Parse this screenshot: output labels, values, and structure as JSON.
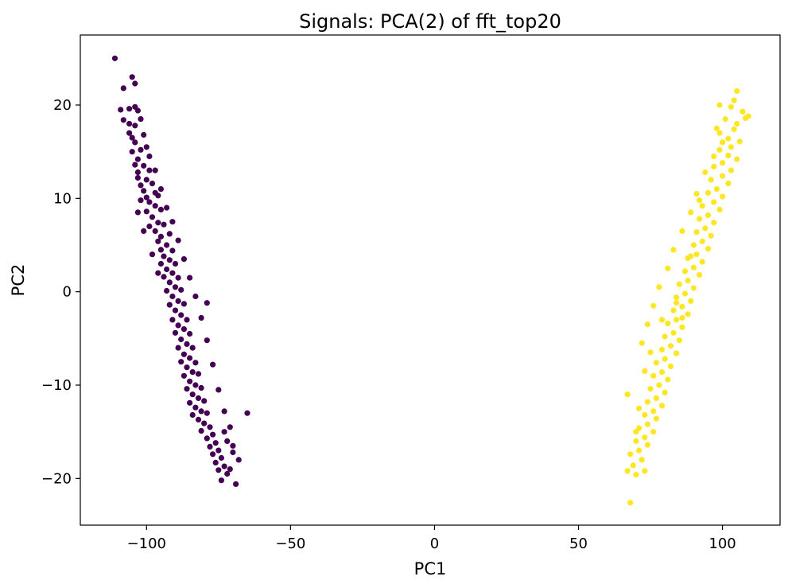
{
  "chart_data": {
    "type": "scatter",
    "title": "Signals: PCA(2) of fft_top20",
    "xlabel": "PC1",
    "ylabel": "PC2",
    "xlim": [
      -123,
      120
    ],
    "ylim": [
      -25,
      27.5
    ],
    "xticks": [
      -100,
      -50,
      0,
      50,
      100
    ],
    "yticks": [
      -20,
      -10,
      0,
      10,
      20
    ],
    "xtick_labels": [
      "−100",
      "−50",
      "0",
      "50",
      "100"
    ],
    "ytick_labels": [
      "−20",
      "−10",
      "0",
      "10",
      "20"
    ],
    "grid": false,
    "legend": "none",
    "series": [
      {
        "color": "#440154",
        "points": [
          [
            -111,
            25
          ],
          [
            -105,
            23
          ],
          [
            -104,
            22.3
          ],
          [
            -108,
            21.8
          ],
          [
            -109,
            19.5
          ],
          [
            -106,
            19.6
          ],
          [
            -104,
            19.8
          ],
          [
            -103,
            19.4
          ],
          [
            -108,
            18.4
          ],
          [
            -106,
            18.0
          ],
          [
            -104,
            17.8
          ],
          [
            -105,
            16.5
          ],
          [
            -101,
            16.8
          ],
          [
            -104,
            16.0
          ],
          [
            -102,
            15.2
          ],
          [
            -105,
            15.0
          ],
          [
            -99,
            14.5
          ],
          [
            -103,
            14.2
          ],
          [
            -104,
            13.6
          ],
          [
            -101,
            13.5
          ],
          [
            -103,
            12.8
          ],
          [
            -99,
            13.0
          ],
          [
            -103,
            12.2
          ],
          [
            -100,
            12.0
          ],
          [
            -102,
            11.4
          ],
          [
            -98,
            11.6
          ],
          [
            -101,
            10.8
          ],
          [
            -97,
            10.6
          ],
          [
            -100,
            10.1
          ],
          [
            -96,
            10.3
          ],
          [
            -99,
            9.6
          ],
          [
            -102,
            9.8
          ],
          [
            -97,
            9.2
          ],
          [
            -100,
            8.6
          ],
          [
            -95,
            8.8
          ],
          [
            -98,
            8.0
          ],
          [
            -96,
            7.4
          ],
          [
            -99,
            7.0
          ],
          [
            -94,
            7.2
          ],
          [
            -97,
            6.5
          ],
          [
            -95,
            5.9
          ],
          [
            -92,
            6.2
          ],
          [
            -96,
            5.4
          ],
          [
            -93,
            5.0
          ],
          [
            -95,
            4.5
          ],
          [
            -91,
            4.4
          ],
          [
            -94,
            3.8
          ],
          [
            -92,
            3.4
          ],
          [
            -95,
            3.0
          ],
          [
            -90,
            3.0
          ],
          [
            -93,
            2.4
          ],
          [
            -91,
            2.0
          ],
          [
            -94,
            1.6
          ],
          [
            -89,
            1.5
          ],
          [
            -92,
            1.0
          ],
          [
            -90,
            0.5
          ],
          [
            -93,
            0.1
          ],
          [
            -88,
            0.2
          ],
          [
            -91,
            -0.5
          ],
          [
            -89,
            -1.0
          ],
          [
            -92,
            -1.4
          ],
          [
            -87,
            -1.3
          ],
          [
            -90,
            -2.0
          ],
          [
            -88,
            -2.5
          ],
          [
            -91,
            -3.0
          ],
          [
            -86,
            -3.0
          ],
          [
            -89,
            -3.6
          ],
          [
            -87,
            -4.0
          ],
          [
            -90,
            -4.4
          ],
          [
            -85,
            -4.5
          ],
          [
            -88,
            -5.1
          ],
          [
            -86,
            -5.6
          ],
          [
            -89,
            -6.0
          ],
          [
            -84,
            -6.0
          ],
          [
            -87,
            -6.7
          ],
          [
            -85,
            -7.1
          ],
          [
            -88,
            -7.5
          ],
          [
            -83,
            -7.6
          ],
          [
            -86,
            -8.1
          ],
          [
            -84,
            -8.6
          ],
          [
            -87,
            -9.0
          ],
          [
            -82,
            -8.8
          ],
          [
            -85,
            -9.6
          ],
          [
            -83,
            -10.0
          ],
          [
            -86,
            -10.4
          ],
          [
            -81,
            -10.3
          ],
          [
            -84,
            -11.0
          ],
          [
            -82,
            -11.4
          ],
          [
            -85,
            -11.9
          ],
          [
            -80,
            -11.7
          ],
          [
            -83,
            -12.4
          ],
          [
            -81,
            -12.8
          ],
          [
            -84,
            -13.2
          ],
          [
            -79,
            -13.0
          ],
          [
            -82,
            -13.7
          ],
          [
            -80,
            -14.1
          ],
          [
            -78,
            -14.5
          ],
          [
            -81,
            -14.9
          ],
          [
            -77,
            -15.3
          ],
          [
            -79,
            -15.7
          ],
          [
            -76,
            -16.2
          ],
          [
            -78,
            -16.6
          ],
          [
            -75,
            -17.0
          ],
          [
            -77,
            -17.4
          ],
          [
            -74,
            -17.8
          ],
          [
            -76,
            -18.3
          ],
          [
            -73,
            -18.7
          ],
          [
            -75,
            -19.1
          ],
          [
            -72,
            -19.5
          ],
          [
            -74,
            -20.2
          ],
          [
            -69,
            -20.6
          ],
          [
            -71,
            -19.0
          ],
          [
            -70,
            -17.2
          ],
          [
            -72,
            -16.0
          ],
          [
            -73,
            -15.0
          ],
          [
            -65,
            -13.0
          ],
          [
            -79,
            -1.2
          ],
          [
            -96,
            2.0
          ],
          [
            -98,
            4.0
          ],
          [
            -101,
            6.5
          ],
          [
            -103,
            8.5
          ],
          [
            -106,
            17.0
          ],
          [
            -102,
            18.5
          ],
          [
            -100,
            15.5
          ],
          [
            -97,
            13.0
          ],
          [
            -95,
            11.0
          ],
          [
            -93,
            9.0
          ],
          [
            -91,
            7.5
          ],
          [
            -89,
            5.5
          ],
          [
            -87,
            3.5
          ],
          [
            -85,
            1.5
          ],
          [
            -83,
            -0.5
          ],
          [
            -81,
            -2.8
          ],
          [
            -79,
            -5.2
          ],
          [
            -77,
            -7.8
          ],
          [
            -75,
            -10.5
          ],
          [
            -73,
            -12.8
          ],
          [
            -71,
            -14.5
          ],
          [
            -70,
            -16.5
          ],
          [
            -68,
            -18.0
          ]
        ]
      },
      {
        "color": "#fde725",
        "points": [
          [
            105,
            21.5
          ],
          [
            99,
            20.0
          ],
          [
            103,
            19.8
          ],
          [
            107,
            19.3
          ],
          [
            101,
            18.5
          ],
          [
            105,
            18.0
          ],
          [
            108,
            18.6
          ],
          [
            104,
            17.4
          ],
          [
            99,
            17.0
          ],
          [
            102,
            16.4
          ],
          [
            106,
            16.1
          ],
          [
            103,
            15.5
          ],
          [
            99,
            15.2
          ],
          [
            102,
            14.6
          ],
          [
            105,
            14.2
          ],
          [
            100,
            13.8
          ],
          [
            97,
            13.4
          ],
          [
            103,
            13.0
          ],
          [
            100,
            12.4
          ],
          [
            96,
            12.0
          ],
          [
            102,
            11.6
          ],
          [
            98,
            11.0
          ],
          [
            95,
            10.6
          ],
          [
            100,
            10.2
          ],
          [
            97,
            9.6
          ],
          [
            93,
            9.2
          ],
          [
            99,
            8.8
          ],
          [
            95,
            8.2
          ],
          [
            92,
            7.8
          ],
          [
            97,
            7.4
          ],
          [
            94,
            6.8
          ],
          [
            91,
            6.4
          ],
          [
            96,
            6.0
          ],
          [
            93,
            5.4
          ],
          [
            90,
            5.0
          ],
          [
            95,
            4.6
          ],
          [
            91,
            4.0
          ],
          [
            88,
            3.6
          ],
          [
            93,
            3.2
          ],
          [
            90,
            2.6
          ],
          [
            87,
            2.2
          ],
          [
            92,
            1.8
          ],
          [
            88,
            1.2
          ],
          [
            85,
            0.8
          ],
          [
            90,
            0.4
          ],
          [
            87,
            -0.2
          ],
          [
            84,
            -0.6
          ],
          [
            89,
            -1.0
          ],
          [
            86,
            -1.6
          ],
          [
            83,
            -2.0
          ],
          [
            88,
            -2.4
          ],
          [
            84,
            -3.0
          ],
          [
            81,
            -3.4
          ],
          [
            86,
            -3.8
          ],
          [
            83,
            -4.4
          ],
          [
            80,
            -4.8
          ],
          [
            85,
            -5.2
          ],
          [
            82,
            -5.8
          ],
          [
            79,
            -6.2
          ],
          [
            84,
            -6.6
          ],
          [
            80,
            -7.2
          ],
          [
            77,
            -7.6
          ],
          [
            82,
            -8.0
          ],
          [
            79,
            -8.6
          ],
          [
            76,
            -9.0
          ],
          [
            81,
            -9.4
          ],
          [
            78,
            -10.0
          ],
          [
            75,
            -10.4
          ],
          [
            80,
            -10.8
          ],
          [
            77,
            -11.4
          ],
          [
            74,
            -11.8
          ],
          [
            79,
            -12.2
          ],
          [
            76,
            -12.8
          ],
          [
            73,
            -13.2
          ],
          [
            77,
            -13.6
          ],
          [
            74,
            -14.2
          ],
          [
            71,
            -14.6
          ],
          [
            76,
            -15.0
          ],
          [
            73,
            -15.6
          ],
          [
            70,
            -16.0
          ],
          [
            74,
            -16.4
          ],
          [
            71,
            -17.0
          ],
          [
            68,
            -17.4
          ],
          [
            72,
            -18.0
          ],
          [
            69,
            -18.6
          ],
          [
            67,
            -19.2
          ],
          [
            70,
            -19.6
          ],
          [
            73,
            -19.2
          ],
          [
            67,
            -11.0
          ],
          [
            68,
            -22.6
          ],
          [
            109,
            18.8
          ],
          [
            104,
            20.5
          ],
          [
            100,
            16.0
          ],
          [
            97,
            14.5
          ],
          [
            94,
            12.8
          ],
          [
            91,
            10.5
          ],
          [
            89,
            8.5
          ],
          [
            86,
            6.5
          ],
          [
            83,
            4.5
          ],
          [
            81,
            2.5
          ],
          [
            78,
            0.5
          ],
          [
            76,
            -1.5
          ],
          [
            74,
            -3.5
          ],
          [
            72,
            -5.5
          ],
          [
            86,
            -2.8
          ],
          [
            89,
            3.8
          ],
          [
            92,
            9.8
          ],
          [
            98,
            17.5
          ],
          [
            84,
            -1.2
          ],
          [
            79,
            -3.0
          ],
          [
            75,
            -6.5
          ],
          [
            73,
            -8.5
          ],
          [
            71,
            -12.5
          ],
          [
            70,
            -15.0
          ]
        ]
      }
    ]
  }
}
